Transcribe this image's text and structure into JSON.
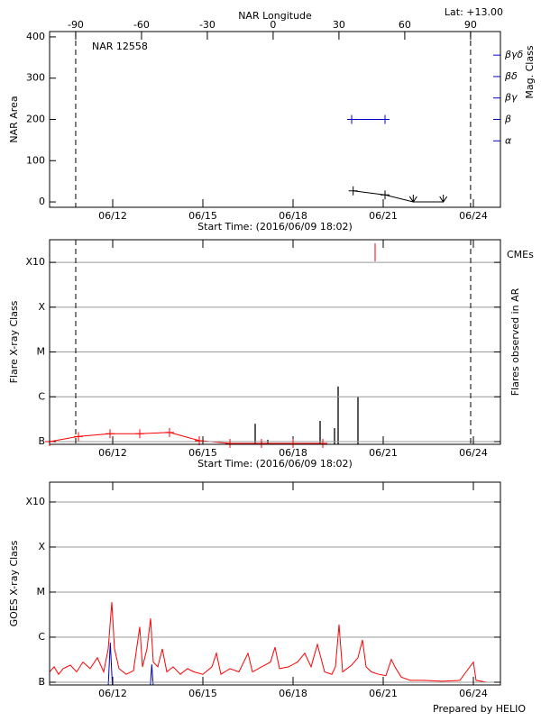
{
  "chart_data": [
    {
      "type": "line",
      "title": "NAR 12558",
      "annotation": "Lat: +13.00",
      "x2label": "NAR Longitude",
      "ylabel": "NAR Area",
      "y2label": "Mag. Class",
      "xlabel": "Start Time: (2016/06/09 18:02)",
      "xlim": [
        9.9,
        24.9
      ],
      "xticks": [
        {
          "value": 12,
          "label": "06/12"
        },
        {
          "value": 15,
          "label": "06/15"
        },
        {
          "value": 18,
          "label": "06/18"
        },
        {
          "value": 21,
          "label": "06/21"
        },
        {
          "value": 24,
          "label": "06/24"
        }
      ],
      "x2lim": [
        -101.9,
        103.6
      ],
      "x2ticks": [
        -90,
        -60,
        -30,
        0,
        30,
        60,
        90
      ],
      "ylim": [
        -13,
        413
      ],
      "yticks": [
        0,
        100,
        200,
        300,
        400
      ],
      "y2lim": [
        -0.1,
        8.1
      ],
      "y2ticks": [
        {
          "value": 3,
          "label": "α"
        },
        {
          "value": 4,
          "label": "β"
        },
        {
          "value": 5,
          "label": "βγ"
        },
        {
          "value": 6,
          "label": "βδ"
        },
        {
          "value": 7,
          "label": "βγδ"
        }
      ],
      "y2color": "#0000cc",
      "grid": false,
      "dashed_x2": [
        -90,
        90
      ],
      "series": [
        {
          "color": "#000000",
          "x": [
            20.0,
            21.06,
            22.0,
            23.0
          ],
          "values": [
            27,
            17,
            0,
            0
          ],
          "markers": [
            "+",
            "+",
            "v",
            "v"
          ]
        },
        {
          "color": "#0000cc",
          "axis": "y2",
          "x": [
            19.95,
            21.06
          ],
          "values": [
            4,
            4
          ],
          "markers": [
            "+",
            "+"
          ]
        }
      ]
    },
    {
      "type": "line",
      "ylabel": "Flare X-ray Class",
      "y2label": "Flares observed in AR",
      "xlabel": "Start Time: (2016/06/09 18:02)",
      "xlim": [
        9.9,
        24.9
      ],
      "xticks": [
        {
          "value": 12,
          "label": "06/12"
        },
        {
          "value": 15,
          "label": "06/15"
        },
        {
          "value": 18,
          "label": "06/18"
        },
        {
          "value": 21,
          "label": "06/21"
        },
        {
          "value": 24,
          "label": "06/24"
        }
      ],
      "log_y": true,
      "ylim": [
        8.7e-08,
        0.0032
      ],
      "yticks": [
        {
          "value": 1e-07,
          "label": "B"
        },
        {
          "value": 1e-06,
          "label": "C"
        },
        {
          "value": 1e-05,
          "label": "M"
        },
        {
          "value": 0.0001,
          "label": "X"
        },
        {
          "value": 0.001,
          "label": "X10"
        }
      ],
      "grid": true,
      "dashed_x": [
        10.77,
        23.91
      ],
      "series": [
        {
          "color": "#ff0000",
          "x": [
            9.9,
            10.86,
            11.91,
            12.9,
            13.89,
            14.88,
            15.9,
            16.95,
            18.0,
            18.99
          ],
          "values": [
            1e-07,
            1.3e-07,
            1.5e-07,
            1.5e-07,
            1.6e-07,
            1.05e-07,
            9.1e-08,
            9.1e-08,
            9.1e-08,
            9.1e-08
          ],
          "markers": [
            "+",
            "+",
            "+",
            "+",
            "+",
            "+",
            "+",
            "+",
            "+",
            "+"
          ]
        }
      ],
      "bars": {
        "color": "#000000",
        "x": [
          16.74,
          16.95,
          17.16,
          18.9,
          19.38,
          19.5,
          20.16
        ],
        "values": [
          2.5e-07,
          1e-07,
          1.1e-07,
          2.9e-07,
          2e-07,
          1.7e-06,
          1e-06
        ]
      },
      "events": {
        "name": "CMEs",
        "color": "#ff0000",
        "x": [
          20.73
        ]
      }
    },
    {
      "type": "line",
      "ylabel": "GOES X-ray Class",
      "footer": "Prepared by HELIO",
      "xlim": [
        9.9,
        24.9
      ],
      "xticks": [
        {
          "value": 12,
          "label": "06/12"
        },
        {
          "value": 15,
          "label": "06/15"
        },
        {
          "value": 18,
          "label": "06/18"
        },
        {
          "value": 21,
          "label": "06/21"
        },
        {
          "value": 24,
          "label": "06/24"
        }
      ],
      "log_y": true,
      "ylim": [
        8.7e-08,
        0.00275
      ],
      "yticks": [
        {
          "value": 1e-07,
          "label": "B"
        },
        {
          "value": 1e-06,
          "label": "C"
        },
        {
          "value": 1e-05,
          "label": "M"
        },
        {
          "value": 0.0001,
          "label": "X"
        },
        {
          "value": 0.001,
          "label": "X10"
        }
      ],
      "grid": true,
      "series": [
        {
          "color": "#ff0000",
          "x": [
            9.9,
            10.05,
            10.2,
            10.35,
            10.59,
            10.8,
            11.01,
            11.25,
            11.49,
            11.7,
            11.85,
            11.97,
            12.06,
            12.21,
            12.45,
            12.69,
            12.9,
            12.99,
            13.14,
            13.26,
            13.35,
            13.5,
            13.65,
            13.8,
            14.01,
            14.25,
            14.49,
            14.7,
            15.0,
            15.3,
            15.45,
            15.6,
            15.9,
            16.2,
            16.5,
            16.65,
            16.95,
            17.25,
            17.4,
            17.55,
            17.85,
            18.15,
            18.39,
            18.6,
            18.81,
            19.05,
            19.29,
            19.41,
            19.53,
            19.65,
            19.95,
            20.16,
            20.31,
            20.43,
            20.61,
            20.85,
            21.09,
            21.27,
            21.39,
            21.6,
            21.9,
            22.35,
            22.95,
            23.55,
            24.0,
            24.09,
            24.45,
            24.9
          ],
          "values": [
            1.7e-07,
            2.2e-07,
            1.5e-07,
            2e-07,
            2.4e-07,
            1.7e-07,
            2.8e-07,
            2e-07,
            3.5e-07,
            1.7e-07,
            5.5e-07,
            6e-06,
            5.5e-07,
            2e-07,
            1.5e-07,
            1.8e-07,
            1.7e-06,
            2.2e-07,
            5.5e-07,
            2.6e-06,
            2.8e-07,
            2.2e-07,
            5.5e-07,
            1.7e-07,
            2.2e-07,
            1.5e-07,
            2e-07,
            1.7e-07,
            1.5e-07,
            2.2e-07,
            4.4e-07,
            1.5e-07,
            2e-07,
            1.7e-07,
            4.4e-07,
            1.7e-07,
            2.2e-07,
            2.8e-07,
            6e-07,
            2e-07,
            2.2e-07,
            2.8e-07,
            4.4e-07,
            2.2e-07,
            6.9e-07,
            1.7e-07,
            1.5e-07,
            2.2e-07,
            1.9e-06,
            1.7e-07,
            2.4e-07,
            3.5e-07,
            8.7e-07,
            2.2e-07,
            1.7e-07,
            1.5e-07,
            1.4e-07,
            3.2e-07,
            2.2e-07,
            1.3e-07,
            1.1e-07,
            1.1e-07,
            1.05e-07,
            1.1e-07,
            2.8e-07,
            1.1e-07,
            1e-07,
            1e-07
          ]
        },
        {
          "color": "#0000cc",
          "x": [
            11.85,
            11.92,
            11.99,
            13.25,
            13.3,
            13.35
          ],
          "values": [
            8e-08,
            7.6e-07,
            8e-08,
            8e-08,
            2.5e-07,
            8e-08
          ]
        }
      ]
    }
  ]
}
